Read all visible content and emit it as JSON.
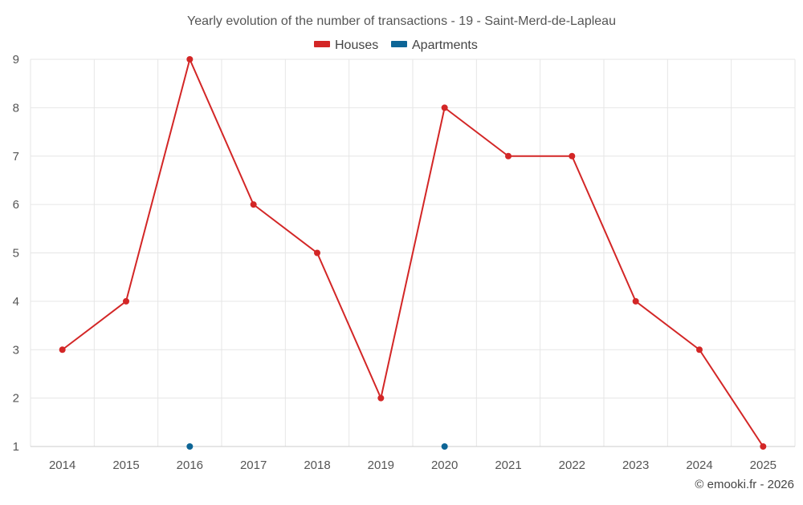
{
  "chart_data": {
    "type": "line",
    "title": "Yearly evolution of the number of transactions - 19 - Saint-Merd-de-Lapleau",
    "categories": [
      "2014",
      "2015",
      "2016",
      "2017",
      "2018",
      "2019",
      "2020",
      "2021",
      "2022",
      "2023",
      "2024",
      "2025"
    ],
    "yticks": [
      "1",
      "2",
      "3",
      "4",
      "5",
      "6",
      "7",
      "8",
      "9"
    ],
    "ylim": [
      1,
      9
    ],
    "grid": true,
    "legend_position": "top-center",
    "series": [
      {
        "name": "Houses",
        "color": "#d32626",
        "values": [
          3,
          4,
          9,
          6,
          5,
          2,
          8,
          7,
          7,
          4,
          3,
          1
        ]
      },
      {
        "name": "Apartments",
        "color": "#0d6596",
        "values": [
          null,
          null,
          1,
          null,
          null,
          null,
          1,
          null,
          null,
          null,
          null,
          null
        ]
      }
    ],
    "credit": "© emooki.fr - 2026"
  }
}
